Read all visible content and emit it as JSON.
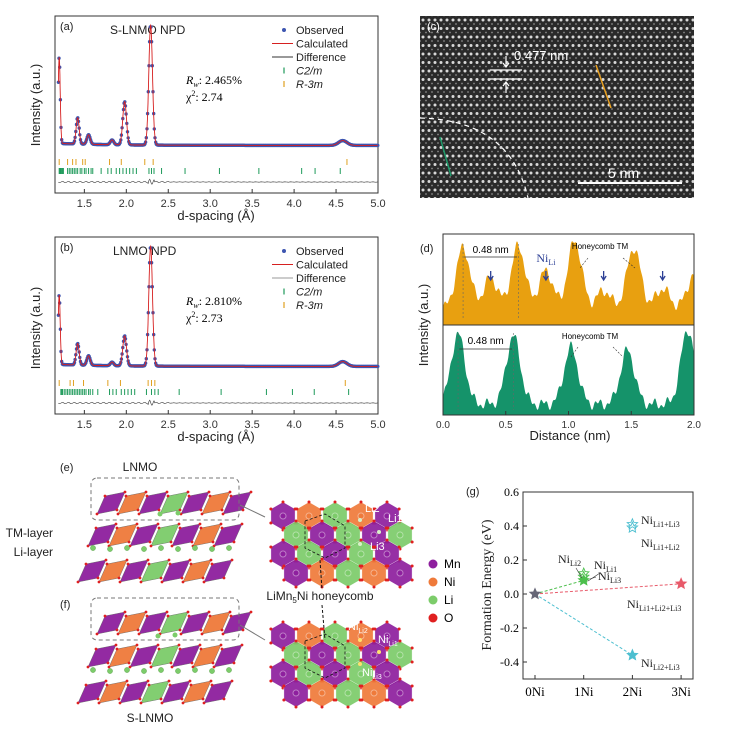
{
  "figure": {
    "panels": [
      "a",
      "b",
      "c",
      "d",
      "e",
      "f",
      "g"
    ]
  },
  "colors": {
    "observed": "#3d55b0",
    "calculated": "#d62020",
    "difference": "#333333",
    "c2m_tick": "#1e9a5a",
    "r3m_tick": "#e0a020",
    "profile_orange": "#e8a010",
    "profile_green": "#15936a",
    "arrow_blue": "#2c3f95",
    "mn": "#8e1f9e",
    "ni": "#ef7a3a",
    "li": "#7ccc6a",
    "o": "#e02020",
    "star_gray": "#666677",
    "star_green": "#4cbf4c",
    "star_cyan": "#4dbfd0",
    "star_red": "#e85a6a"
  },
  "chart_data": [
    {
      "id": "a",
      "type": "line",
      "panel_label": "(a)",
      "title": "S-LNMO NPD",
      "xlabel": "d-spacing (Å)",
      "ylabel": "Intensity (a.u.)",
      "xlim": [
        1.15,
        5.0
      ],
      "xticks": [
        "1.5",
        "2.0",
        "2.5",
        "3.0",
        "3.5",
        "4.0",
        "4.5",
        "5.0"
      ],
      "xtick_values": [
        1.5,
        2.0,
        2.5,
        3.0,
        3.5,
        4.0,
        4.5,
        5.0
      ],
      "legend": [
        "Observed",
        "Calculated",
        "Difference",
        "C2/m",
        "R-3m"
      ],
      "legend_position": "top-right",
      "annotation_rw": "R",
      "annotation_rw_sub": "w",
      "annotation_rw_value": ": 2.465%",
      "annotation_chi": "χ",
      "annotation_chi_sup": "2",
      "annotation_chi_value": ": 2.74",
      "peaks": [
        {
          "d": 1.2,
          "height": 0.72,
          "width": 0.012
        },
        {
          "d": 1.42,
          "height": 0.22,
          "width": 0.018
        },
        {
          "d": 1.55,
          "height": 0.08,
          "width": 0.02
        },
        {
          "d": 1.83,
          "height": 0.04,
          "width": 0.02
        },
        {
          "d": 1.98,
          "height": 0.36,
          "width": 0.022
        },
        {
          "d": 2.29,
          "height": 1.0,
          "width": 0.022
        },
        {
          "d": 4.58,
          "height": 0.04,
          "width": 0.05
        }
      ],
      "background": 0.03,
      "r3m_ticks": [
        1.2,
        1.3,
        1.36,
        1.4,
        1.48,
        1.51,
        1.8,
        1.94,
        2.22,
        2.32,
        4.63
      ],
      "c2m_ticks": [
        1.2,
        1.21,
        1.22,
        1.23,
        1.24,
        1.25,
        1.3,
        1.32,
        1.34,
        1.36,
        1.38,
        1.4,
        1.42,
        1.45,
        1.47,
        1.5,
        1.52,
        1.55,
        1.58,
        1.6,
        1.7,
        1.78,
        1.82,
        1.88,
        1.92,
        1.96,
        2.0,
        2.04,
        2.08,
        2.12,
        2.27,
        2.3,
        2.33,
        2.42,
        2.7,
        3.11,
        3.58,
        4.09,
        4.25,
        4.55
      ]
    },
    {
      "id": "b",
      "type": "line",
      "panel_label": "(b)",
      "title": "LNMO NPD",
      "xlabel": "d-spacing (Å)",
      "ylabel": "Intensity (a.u.)",
      "xlim": [
        1.15,
        5.0
      ],
      "xticks": [
        "1.5",
        "2.0",
        "2.5",
        "3.0",
        "3.5",
        "4.0",
        "4.5",
        "5.0"
      ],
      "xtick_values": [
        1.5,
        2.0,
        2.5,
        3.0,
        3.5,
        4.0,
        4.5,
        5.0
      ],
      "legend": [
        "Observed",
        "Calculated",
        "Difference",
        "C2/m",
        "R-3m"
      ],
      "legend_position": "top-right",
      "annotation_rw": "R",
      "annotation_rw_sub": "w",
      "annotation_rw_value": ": 2.810%",
      "annotation_chi": "χ",
      "annotation_chi_sup": "2",
      "annotation_chi_value": ": 2.73",
      "peaks": [
        {
          "d": 1.2,
          "height": 0.58,
          "width": 0.012
        },
        {
          "d": 1.42,
          "height": 0.18,
          "width": 0.018
        },
        {
          "d": 1.55,
          "height": 0.08,
          "width": 0.02
        },
        {
          "d": 1.83,
          "height": 0.03,
          "width": 0.02
        },
        {
          "d": 1.98,
          "height": 0.25,
          "width": 0.022
        },
        {
          "d": 2.29,
          "height": 1.0,
          "width": 0.022
        },
        {
          "d": 4.58,
          "height": 0.04,
          "width": 0.05
        }
      ],
      "background": 0.03,
      "r3m_ticks": [
        1.2,
        1.33,
        1.37,
        1.49,
        1.78,
        1.93,
        2.26,
        2.3,
        2.34,
        4.61
      ],
      "c2m_ticks": [
        1.22,
        1.23,
        1.24,
        1.26,
        1.28,
        1.3,
        1.32,
        1.34,
        1.36,
        1.38,
        1.4,
        1.42,
        1.44,
        1.46,
        1.48,
        1.5,
        1.52,
        1.55,
        1.57,
        1.6,
        1.66,
        1.8,
        1.84,
        1.88,
        1.94,
        1.98,
        2.02,
        2.06,
        2.1,
        2.24,
        2.3,
        2.34,
        2.38,
        2.63,
        3.13,
        3.67,
        3.98,
        4.24,
        4.65
      ]
    },
    {
      "id": "d",
      "type": "area",
      "panel_label": "(d)",
      "xlabel": "Distance (nm)",
      "ylabel": "Intensity (a.u.)",
      "xlim": [
        0.0,
        2.0
      ],
      "xticks": [
        "0.0",
        "0.5",
        "1.0",
        "1.5",
        "2.0"
      ],
      "xtick_values": [
        0.0,
        0.5,
        1.0,
        1.5,
        2.0
      ],
      "series": [
        {
          "name": "top-profile",
          "color_key": "profile_orange",
          "peaks": [
            {
              "x": 0.16,
              "h": 0.85
            },
            {
              "x": 0.38,
              "h": 0.52
            },
            {
              "x": 0.6,
              "h": 0.87
            },
            {
              "x": 0.82,
              "h": 0.6
            },
            {
              "x": 1.05,
              "h": 0.93
            },
            {
              "x": 1.28,
              "h": 0.38
            },
            {
              "x": 1.52,
              "h": 0.85
            },
            {
              "x": 1.75,
              "h": 0.4
            },
            {
              "x": 2.0,
              "h": 0.55
            }
          ],
          "baseline": 0.18
        },
        {
          "name": "bottom-profile",
          "color_key": "profile_green",
          "peaks": [
            {
              "x": 0.12,
              "h": 0.9
            },
            {
              "x": 0.56,
              "h": 0.88
            },
            {
              "x": 1.02,
              "h": 0.75
            },
            {
              "x": 1.47,
              "h": 0.72
            },
            {
              "x": 1.95,
              "h": 0.95
            }
          ],
          "baseline": 0.12
        }
      ],
      "annotations": {
        "spacing_top": "0.48 nm",
        "spacing_bottom": "0.48 nm",
        "ni_li": "Ni",
        "ni_li_sub": "Li",
        "honeycomb_top": "Honeycomb TM",
        "honeycomb_bottom": "Honeycomb TM",
        "ni_arrow_positions": [
          0.38,
          0.82,
          1.28,
          1.75
        ]
      }
    },
    {
      "id": "g",
      "type": "scatter",
      "panel_label": "(g)",
      "xlabel": "",
      "ylabel": "Formation Energy (eV)",
      "categories": [
        "0Ni",
        "1Ni",
        "2Ni",
        "3Ni"
      ],
      "ylim": [
        -0.5,
        0.6
      ],
      "yticks": [
        "-0.4",
        "-0.2",
        "0.0",
        "0.2",
        "0.4",
        "0.6"
      ],
      "ytick_values": [
        -0.4,
        -0.2,
        0.0,
        0.2,
        0.4,
        0.6
      ],
      "points": [
        {
          "label": "0Ni",
          "x": 0,
          "y": 0.0,
          "color_key": "star_gray",
          "filled": true
        },
        {
          "label": "NiLi2",
          "x": 1,
          "y": 0.12,
          "color_key": "star_green",
          "filled": false
        },
        {
          "label": "NiLi1",
          "x": 1,
          "y": 0.1,
          "color_key": "star_green",
          "filled": false
        },
        {
          "label": "NiLi3",
          "x": 1,
          "y": 0.08,
          "color_key": "star_green",
          "filled": true
        },
        {
          "label": "NiLi1+Li3",
          "x": 2,
          "y": 0.41,
          "color_key": "star_cyan",
          "filled": false
        },
        {
          "label": "NiLi1+Li2",
          "x": 2,
          "y": 0.39,
          "color_key": "star_cyan",
          "filled": false
        },
        {
          "label": "NiLi2+Li3",
          "x": 2,
          "y": -0.36,
          "color_key": "star_cyan",
          "filled": true
        },
        {
          "label": "NiLi1+Li2+Li3",
          "x": 3,
          "y": 0.06,
          "color_key": "star_red",
          "filled": true
        }
      ],
      "lines": [
        {
          "from": [
            0,
            0.0
          ],
          "to": [
            1,
            0.08
          ],
          "color_key": "star_green"
        },
        {
          "from": [
            0,
            0.0
          ],
          "to": [
            2,
            -0.36
          ],
          "color_key": "star_cyan"
        },
        {
          "from": [
            0,
            0.0
          ],
          "to": [
            3,
            0.06
          ],
          "color_key": "star_red"
        }
      ],
      "labels": [
        {
          "base": "Ni",
          "sub": "Li2"
        },
        {
          "base": "Ni",
          "sub": "Li1"
        },
        {
          "base": "Ni",
          "sub": "Li3"
        },
        {
          "base": "Ni",
          "sub": "Li1+Li3"
        },
        {
          "base": "Ni",
          "sub": "Li1+Li2"
        },
        {
          "base": "Ni",
          "sub": "Li1+Li2+Li3"
        },
        {
          "base": "Ni",
          "sub": "Li2+Li3"
        }
      ]
    }
  ],
  "panel_c": {
    "label": "(c)",
    "spacing": "0.477 nm",
    "scale_bar": "5 nm"
  },
  "panel_ef": {
    "label_e": "(e)",
    "label_f": "(f)",
    "title_top": "LNMO",
    "title_bottom": "S-LNMO",
    "tm_layer": "TM-layer",
    "li_layer": "Li-layer",
    "honeycomb": "LiMn",
    "honeycomb_sub": "5",
    "honeycomb_rest": "Ni honeycomb",
    "sites_top": [
      "Li2",
      "Li1",
      "Li3"
    ],
    "sites_bottom": [
      {
        "base": "Ni",
        "sub": "Li2"
      },
      {
        "base": "Ni",
        "sub": "Li1"
      },
      {
        "base": "Ni",
        "sub": "Li3"
      }
    ],
    "legend": [
      {
        "label": "Mn",
        "color_key": "mn"
      },
      {
        "label": "Ni",
        "color_key": "ni"
      },
      {
        "label": "Li",
        "color_key": "li"
      },
      {
        "label": "O",
        "color_key": "o"
      }
    ]
  }
}
